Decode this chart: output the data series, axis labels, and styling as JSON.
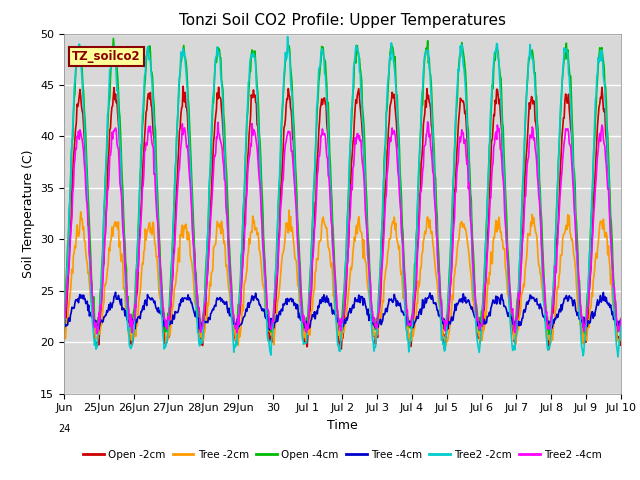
{
  "title": "Tonzi Soil CO2 Profile: Upper Temperatures",
  "xlabel": "Time",
  "ylabel": "Soil Temperature (C)",
  "ylim": [
    15,
    50
  ],
  "bg_color": "#d8d8d8",
  "fig_color": "#ffffff",
  "grid_color": "#ffffff",
  "label_box_text": "TZ_soilco2",
  "label_box_bg": "#ffff99",
  "label_box_edge": "#8b0000",
  "series": [
    {
      "label": "Open -2cm",
      "color": "#cc0000",
      "lw": 1.2,
      "base": 32,
      "amp": 12,
      "phase": 1.25,
      "noise": 0.4
    },
    {
      "label": "Tree -2cm",
      "color": "#ff9900",
      "lw": 1.2,
      "base": 26,
      "amp": 5.5,
      "phase": 1.35,
      "noise": 0.5
    },
    {
      "label": "Open -4cm",
      "color": "#00bb00",
      "lw": 1.2,
      "base": 35,
      "amp": 13.5,
      "phase": 1.15,
      "noise": 0.4
    },
    {
      "label": "Tree -4cm",
      "color": "#0000cc",
      "lw": 1.2,
      "base": 23,
      "amp": 1.3,
      "phase": 1.5,
      "noise": 0.25
    },
    {
      "label": "Tree2 -2cm",
      "color": "#00cccc",
      "lw": 1.2,
      "base": 34,
      "amp": 14.5,
      "phase": 1.05,
      "noise": 0.4
    },
    {
      "label": "Tree2 -4cm",
      "color": "#ff00ff",
      "lw": 1.2,
      "base": 31,
      "amp": 9.5,
      "phase": 1.25,
      "noise": 0.4
    }
  ]
}
